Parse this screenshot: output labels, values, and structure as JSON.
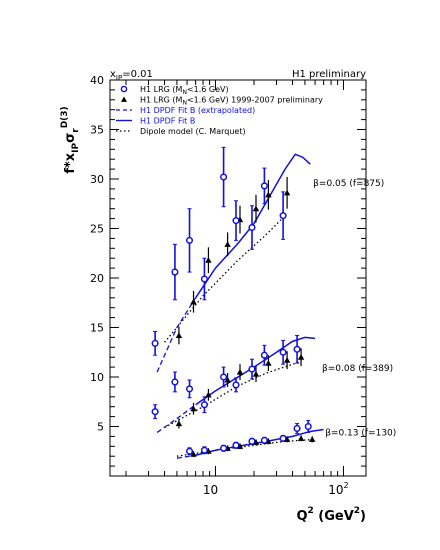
{
  "chart_data": {
    "type": "scatter",
    "x_scale": "log",
    "xlim": [
      1.5,
      150
    ],
    "ylim": [
      0,
      40
    ],
    "y_ticks": [
      5,
      10,
      15,
      20,
      25,
      30,
      35,
      40
    ],
    "x_tick_labels": [
      {
        "label": "10",
        "value": 10
      },
      {
        "label": "10",
        "sup": "2",
        "value": 100
      }
    ],
    "x_label": {
      "main": "Q",
      "sup": "2",
      "rest": " (GeV",
      "sup2": "2",
      "end": ")"
    },
    "y_label": {
      "main": "f*x",
      "sub": "IP",
      "sigma": "σ",
      "sub2": "r",
      "sup": "D(3)"
    },
    "top_left_label": {
      "main": "x",
      "sub": "IP",
      "rest": "=0.01"
    },
    "top_right_label": "H1 preliminary",
    "legend": [
      {
        "marker": "open-circle",
        "color": "#1010e0",
        "parts": [
          "H1 LRG (M",
          "N",
          "<1.6 GeV)"
        ]
      },
      {
        "marker": "filled-triangle",
        "color": "#000000",
        "parts": [
          "H1 LRG (M",
          "N",
          "<1.6 GeV) 1999-2007 preliminary"
        ]
      },
      {
        "marker": "dashed-line",
        "color": "#1010e0",
        "parts": [
          "H1 DPDF Fit B (extrapolated)"
        ]
      },
      {
        "marker": "solid-line",
        "color": "#1010e0",
        "parts": [
          "H1 DPDF Fit B"
        ]
      },
      {
        "marker": "dotted-line",
        "color": "#000000",
        "parts": [
          "Dipole model (C. Marquet)"
        ]
      }
    ],
    "groups": [
      {
        "label": "β=0.05 (f=875)",
        "label_anchor": [
          58,
          29.3
        ],
        "open_circles": [
          {
            "x": 3.5,
            "y": 13.4,
            "err": 1.2
          },
          {
            "x": 5.0,
            "y": 20.6,
            "err": 2.8
          },
          {
            "x": 6.5,
            "y": 23.8,
            "err": 3.2
          },
          {
            "x": 8.5,
            "y": 19.9,
            "err": 2.1
          },
          {
            "x": 12.0,
            "y": 30.2,
            "err": 3.0
          },
          {
            "x": 15.0,
            "y": 25.8,
            "err": 2.0
          },
          {
            "x": 20.0,
            "y": 25.1,
            "err": 2.2
          },
          {
            "x": 25.0,
            "y": 29.3,
            "err": 1.8
          },
          {
            "x": 35.0,
            "y": 26.3,
            "err": 2.4
          }
        ],
        "triangles": [
          {
            "x": 5.0,
            "y": 14.2,
            "err": 0.9
          },
          {
            "x": 6.5,
            "y": 17.6,
            "err": 1.1
          },
          {
            "x": 8.5,
            "y": 21.8,
            "err": 1.3
          },
          {
            "x": 12.0,
            "y": 23.4,
            "err": 1.2
          },
          {
            "x": 15.0,
            "y": 25.9,
            "err": 1.4
          },
          {
            "x": 20.0,
            "y": 27.0,
            "err": 1.4
          },
          {
            "x": 25.0,
            "y": 28.4,
            "err": 1.5
          },
          {
            "x": 35.0,
            "y": 28.6,
            "err": 1.6
          }
        ],
        "fit_dashed": [
          [
            3.5,
            10.5
          ],
          [
            5.0,
            15.0
          ],
          [
            7.0,
            18.0
          ]
        ],
        "fit_solid": [
          [
            7.0,
            18.0
          ],
          [
            10.0,
            21.0
          ],
          [
            15.0,
            23.5
          ],
          [
            20.0,
            25.5
          ],
          [
            28.0,
            28.8
          ],
          [
            35.0,
            31.0
          ],
          [
            42.0,
            32.5
          ],
          [
            48.0,
            32.2
          ],
          [
            55.0,
            31.5
          ]
        ],
        "dipole": [
          [
            4.0,
            13.5
          ],
          [
            8.0,
            18.2
          ],
          [
            15.0,
            21.8
          ],
          [
            25.0,
            24.4
          ],
          [
            35.0,
            26.3
          ]
        ]
      },
      {
        "label": "β=0.08 (f=389)",
        "label_anchor": [
          68,
          10.6
        ],
        "open_circles": [
          {
            "x": 3.5,
            "y": 6.5,
            "err": 0.7
          },
          {
            "x": 5.0,
            "y": 9.5,
            "err": 1.0
          },
          {
            "x": 6.5,
            "y": 8.8,
            "err": 0.9
          },
          {
            "x": 8.5,
            "y": 7.2,
            "err": 0.8
          },
          {
            "x": 12.0,
            "y": 10.0,
            "err": 1.0
          },
          {
            "x": 15.0,
            "y": 9.2,
            "err": 0.7
          },
          {
            "x": 20.0,
            "y": 10.8,
            "err": 1.0
          },
          {
            "x": 25.0,
            "y": 12.2,
            "err": 1.0
          },
          {
            "x": 35.0,
            "y": 12.5,
            "err": 1.2
          },
          {
            "x": 45.0,
            "y": 12.8,
            "err": 1.4
          }
        ],
        "triangles": [
          {
            "x": 5.0,
            "y": 5.3,
            "err": 0.5
          },
          {
            "x": 6.5,
            "y": 6.8,
            "err": 0.6
          },
          {
            "x": 8.5,
            "y": 8.2,
            "err": 0.6
          },
          {
            "x": 12.0,
            "y": 9.7,
            "err": 0.7
          },
          {
            "x": 15.0,
            "y": 10.5,
            "err": 0.8
          },
          {
            "x": 20.0,
            "y": 10.3,
            "err": 0.8
          },
          {
            "x": 25.0,
            "y": 11.4,
            "err": 0.8
          },
          {
            "x": 35.0,
            "y": 11.7,
            "err": 0.9
          },
          {
            "x": 45.0,
            "y": 12.0,
            "err": 0.9
          }
        ],
        "fit_dashed": [
          [
            3.5,
            4.4
          ],
          [
            5.0,
            5.8
          ],
          [
            7.0,
            7.2
          ]
        ],
        "fit_solid": [
          [
            7.0,
            7.2
          ],
          [
            10.0,
            8.6
          ],
          [
            15.0,
            10.0
          ],
          [
            20.0,
            11.0
          ],
          [
            30.0,
            12.5
          ],
          [
            40.0,
            13.6
          ],
          [
            50.0,
            14.0
          ],
          [
            60.0,
            13.9
          ]
        ],
        "dipole": [
          [
            4.0,
            4.9
          ],
          [
            8.0,
            7.0
          ],
          [
            15.0,
            9.1
          ],
          [
            25.0,
            10.4
          ],
          [
            45.0,
            11.5
          ]
        ]
      },
      {
        "label": "β=0.13 (f=130)",
        "label_anchor": [
          72,
          4.1
        ],
        "open_circles": [
          {
            "x": 6.5,
            "y": 2.5,
            "err": 0.35
          },
          {
            "x": 8.5,
            "y": 2.6,
            "err": 0.35
          },
          {
            "x": 12.0,
            "y": 2.8,
            "err": 0.3
          },
          {
            "x": 15.0,
            "y": 3.1,
            "err": 0.3
          },
          {
            "x": 20.0,
            "y": 3.5,
            "err": 0.3
          },
          {
            "x": 25.0,
            "y": 3.6,
            "err": 0.3
          },
          {
            "x": 35.0,
            "y": 3.8,
            "err": 0.3
          },
          {
            "x": 45.0,
            "y": 4.8,
            "err": 0.5
          },
          {
            "x": 55.0,
            "y": 5.0,
            "err": 0.6
          }
        ],
        "triangles": [
          {
            "x": 6.5,
            "y": 2.2,
            "err": 0.3
          },
          {
            "x": 8.5,
            "y": 2.5,
            "err": 0.3
          },
          {
            "x": 12.0,
            "y": 2.8,
            "err": 0.3
          },
          {
            "x": 15.0,
            "y": 3.0,
            "err": 0.3
          },
          {
            "x": 20.0,
            "y": 3.4,
            "err": 0.3
          },
          {
            "x": 25.0,
            "y": 3.5,
            "err": 0.3
          },
          {
            "x": 35.0,
            "y": 3.7,
            "err": 0.3
          },
          {
            "x": 45.0,
            "y": 3.8,
            "err": 0.3
          },
          {
            "x": 55.0,
            "y": 3.7,
            "err": 0.3
          }
        ],
        "fit_dashed": [
          [
            5.0,
            1.8
          ],
          [
            7.0,
            2.1
          ]
        ],
        "fit_solid": [
          [
            7.0,
            2.1
          ],
          [
            10.0,
            2.6
          ],
          [
            15.0,
            3.0
          ],
          [
            25.0,
            3.5
          ],
          [
            40.0,
            4.0
          ],
          [
            55.0,
            4.5
          ],
          [
            70.0,
            4.7
          ]
        ],
        "dipole": [
          [
            5.0,
            2.0
          ],
          [
            10.0,
            2.6
          ],
          [
            20.0,
            3.1
          ],
          [
            35.0,
            3.5
          ],
          [
            60.0,
            3.7
          ]
        ]
      }
    ]
  }
}
